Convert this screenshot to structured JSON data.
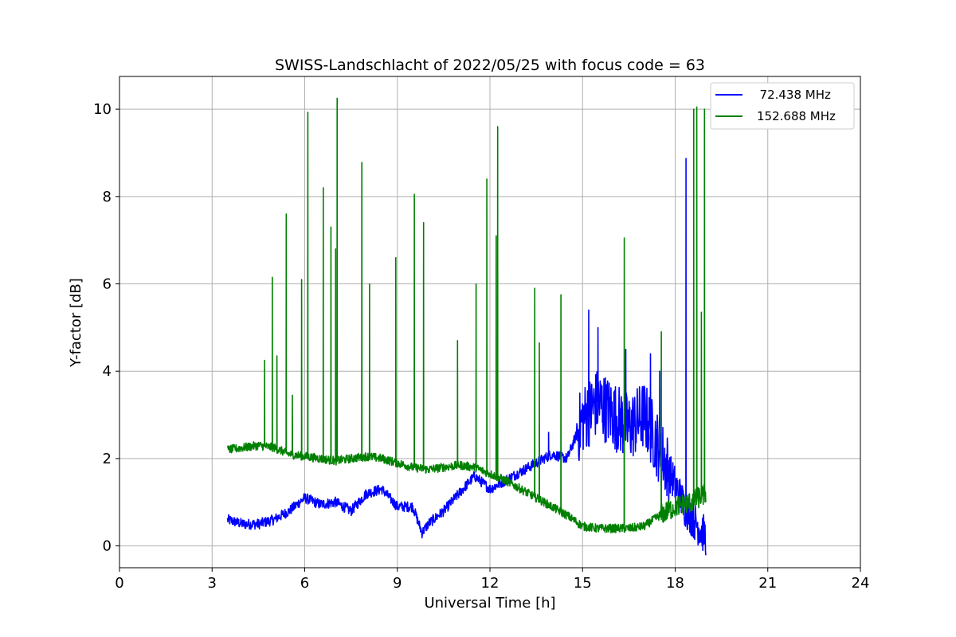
{
  "chart_data": {
    "type": "line",
    "title": "SWISS-Landschlacht of 2022/05/25 with focus code = 63",
    "xlabel": "Universal Time [h]",
    "ylabel": "Y-factor [dB]",
    "xlim": [
      0,
      24
    ],
    "ylim": [
      -0.5,
      10.75
    ],
    "xticks": [
      0,
      3,
      6,
      9,
      12,
      15,
      18,
      21,
      24
    ],
    "yticks": [
      0,
      2,
      4,
      6,
      8,
      10
    ],
    "grid": true,
    "legend_position": "top-right",
    "series": [
      {
        "name": "  72.438 MHz",
        "color": "#0000ff",
        "x": [
          3.5,
          4.0,
          4.5,
          5.0,
          5.5,
          6.0,
          6.5,
          7.0,
          7.5,
          8.0,
          8.5,
          9.0,
          9.5,
          9.8,
          10.0,
          10.5,
          11.0,
          11.5,
          12.0,
          12.5,
          13.0,
          13.5,
          14.0,
          14.5,
          15.0,
          15.5,
          16.0,
          16.5,
          17.0,
          17.5,
          18.0,
          18.3,
          18.5,
          19.0
        ],
        "y": [
          0.6,
          0.5,
          0.5,
          0.6,
          0.8,
          1.1,
          0.95,
          1.0,
          0.8,
          1.2,
          1.3,
          0.9,
          0.9,
          0.3,
          0.5,
          0.8,
          1.2,
          1.6,
          1.3,
          1.5,
          1.7,
          1.9,
          2.1,
          2.0,
          2.9,
          3.3,
          3.0,
          2.7,
          3.0,
          2.2,
          1.4,
          0.9,
          0.7,
          0.2
        ],
        "spikes": [
          {
            "x": 15.2,
            "y": 5.4
          },
          {
            "x": 15.5,
            "y": 5.0
          },
          {
            "x": 16.4,
            "y": 4.5
          },
          {
            "x": 17.2,
            "y": 4.4
          },
          {
            "x": 17.5,
            "y": 4.0
          },
          {
            "x": 18.35,
            "y": 8.87
          },
          {
            "x": 13.9,
            "y": 2.6
          }
        ]
      },
      {
        "name": "152.688 MHz",
        "color": "#008000",
        "x": [
          3.5,
          4.0,
          4.5,
          5.0,
          5.5,
          6.0,
          6.5,
          7.0,
          7.5,
          8.0,
          8.5,
          9.0,
          9.5,
          10.0,
          10.5,
          11.0,
          11.5,
          12.0,
          12.5,
          13.0,
          13.5,
          14.0,
          14.5,
          15.0,
          15.5,
          16.0,
          16.5,
          17.0,
          17.5,
          18.0,
          18.5,
          19.0
        ],
        "y": [
          2.2,
          2.25,
          2.3,
          2.25,
          2.1,
          2.05,
          2.0,
          1.95,
          2.0,
          2.05,
          2.0,
          1.9,
          1.8,
          1.75,
          1.8,
          1.85,
          1.8,
          1.65,
          1.5,
          1.3,
          1.1,
          0.9,
          0.7,
          0.45,
          0.4,
          0.4,
          0.4,
          0.45,
          0.7,
          0.9,
          1.0,
          1.2
        ],
        "spikes": [
          {
            "x": 4.7,
            "y": 4.25
          },
          {
            "x": 4.95,
            "y": 6.15
          },
          {
            "x": 5.1,
            "y": 4.35
          },
          {
            "x": 5.4,
            "y": 7.6
          },
          {
            "x": 5.6,
            "y": 3.45
          },
          {
            "x": 5.9,
            "y": 6.1
          },
          {
            "x": 6.1,
            "y": 9.93
          },
          {
            "x": 6.6,
            "y": 8.2
          },
          {
            "x": 6.85,
            "y": 7.3
          },
          {
            "x": 7.0,
            "y": 6.8
          },
          {
            "x": 7.05,
            "y": 10.25
          },
          {
            "x": 7.85,
            "y": 8.78
          },
          {
            "x": 8.1,
            "y": 6.0
          },
          {
            "x": 8.95,
            "y": 6.6
          },
          {
            "x": 9.55,
            "y": 8.05
          },
          {
            "x": 9.85,
            "y": 7.4
          },
          {
            "x": 10.95,
            "y": 4.7
          },
          {
            "x": 11.55,
            "y": 6.0
          },
          {
            "x": 11.9,
            "y": 8.4
          },
          {
            "x": 12.2,
            "y": 7.1
          },
          {
            "x": 12.25,
            "y": 9.6
          },
          {
            "x": 13.45,
            "y": 5.9
          },
          {
            "x": 13.6,
            "y": 4.65
          },
          {
            "x": 14.3,
            "y": 5.75
          },
          {
            "x": 16.35,
            "y": 7.05
          },
          {
            "x": 17.55,
            "y": 4.9
          },
          {
            "x": 18.6,
            "y": 10.0
          },
          {
            "x": 18.7,
            "y": 10.05
          },
          {
            "x": 18.85,
            "y": 5.35
          },
          {
            "x": 18.95,
            "y": 10.0
          }
        ]
      }
    ]
  }
}
